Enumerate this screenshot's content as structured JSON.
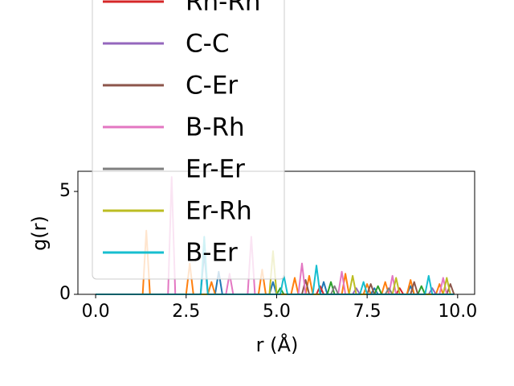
{
  "chart_data": {
    "type": "line",
    "xlabel": "r (Å)",
    "ylabel": "g(r)",
    "xlim": [
      -0.49,
      10.47
    ],
    "ylim": [
      0,
      5.98
    ],
    "xticks": [
      {
        "value": 0,
        "label": "0.0"
      },
      {
        "value": 2.5,
        "label": "2.5"
      },
      {
        "value": 5,
        "label": "5.0"
      },
      {
        "value": 7.5,
        "label": "7.5"
      },
      {
        "value": 10,
        "label": "10.0"
      }
    ],
    "yticks": [
      0,
      5
    ],
    "legend": "upper left",
    "series": [
      {
        "color": "#1f77b4",
        "x": [
          0,
          2.9,
          3.0,
          3.1,
          3.3,
          3.4,
          3.5,
          4.8,
          4.9,
          5.0,
          6.2,
          6.3,
          6.4,
          7.6,
          7.7,
          7.8,
          8.6,
          8.7,
          8.8,
          9.9
        ],
        "values": [
          0,
          0,
          2.0,
          0,
          0,
          1.1,
          0,
          0,
          0.6,
          0,
          0,
          0.6,
          0,
          0,
          0.3,
          0,
          0,
          0.4,
          0,
          0
        ]
      },
      {
        "color": "#ff7f0e",
        "x": [
          0,
          1.3,
          1.4,
          1.5,
          2.5,
          2.6,
          2.7,
          3.1,
          3.2,
          3.3,
          4.5,
          4.6,
          4.7,
          5.4,
          5.5,
          5.6,
          5.8,
          5.9,
          6.0,
          6.8,
          6.9,
          7.0,
          7.4,
          7.5,
          7.6,
          7.9,
          8.0,
          8.1,
          8.6,
          8.7,
          8.8,
          9.4,
          9.5,
          9.6,
          9.9
        ],
        "values": [
          0,
          0,
          3.1,
          0,
          0,
          1.5,
          0,
          0,
          0.6,
          0,
          0,
          1.2,
          0,
          0,
          0.8,
          0,
          0,
          0.9,
          0,
          0,
          1.0,
          0,
          0,
          0.5,
          0,
          0,
          0.6,
          0,
          0,
          0.7,
          0,
          0,
          0.5,
          0,
          0
        ]
      },
      {
        "color": "#2ca02c",
        "x": [
          0,
          5.0,
          5.1,
          5.2,
          6.4,
          6.5,
          6.6,
          7.7,
          7.8,
          7.9,
          8.9,
          9.0,
          9.1,
          9.9
        ],
        "values": [
          0,
          0,
          0.3,
          0,
          0,
          0.6,
          0,
          0,
          0.4,
          0,
          0,
          0.4,
          0,
          0
        ]
      },
      {
        "name": "Rh-Rh",
        "color": "#d62728",
        "x": [
          0,
          6.1,
          6.2,
          6.3,
          8.3,
          8.4,
          8.5,
          9.9
        ],
        "values": [
          0,
          0,
          0.4,
          0,
          0,
          0.3,
          0,
          0
        ]
      },
      {
        "name": "C-C",
        "color": "#9467bd",
        "x": [
          0,
          7.1,
          7.2,
          7.3,
          9.2,
          9.3,
          9.4,
          9.9
        ],
        "values": [
          0,
          0,
          0.3,
          0,
          0,
          0.3,
          0,
          0
        ]
      },
      {
        "name": "C-Er",
        "color": "#8c564b",
        "x": [
          0,
          5.7,
          5.8,
          5.9,
          7.5,
          7.6,
          7.7,
          8.7,
          8.8,
          8.9,
          9.7,
          9.8,
          9.9
        ],
        "values": [
          0,
          0,
          0.7,
          0,
          0,
          0.5,
          0,
          0,
          0.6,
          0,
          0,
          0.5,
          0
        ]
      },
      {
        "name": "B-Rh",
        "color": "#e377c2",
        "x": [
          0,
          2.0,
          2.1,
          2.2,
          3.6,
          3.7,
          3.8,
          4.2,
          4.3,
          4.4,
          5.6,
          5.7,
          5.8,
          6.7,
          6.8,
          6.9,
          8.1,
          8.2,
          8.3,
          9.5,
          9.6,
          9.7,
          9.9
        ],
        "values": [
          0,
          0,
          5.7,
          0,
          0,
          1.0,
          0,
          0,
          2.8,
          0,
          0,
          1.5,
          0,
          0,
          1.1,
          0,
          0,
          0.9,
          0,
          0,
          0.8,
          0,
          0
        ]
      },
      {
        "name": "Er-Er",
        "color": "#7f7f7f",
        "x": [
          0,
          6.5,
          6.6,
          6.7,
          8.0,
          8.1,
          8.2,
          9.9
        ],
        "values": [
          0,
          0,
          0.4,
          0,
          0,
          0.3,
          0,
          0
        ]
      },
      {
        "name": "Er-Rh",
        "color": "#bcbd22",
        "x": [
          0,
          4.8,
          4.9,
          5.0,
          7.0,
          7.1,
          7.2,
          8.2,
          8.3,
          8.4,
          9.6,
          9.7,
          9.8,
          9.9
        ],
        "values": [
          0,
          0,
          2.1,
          0,
          0,
          0.9,
          0,
          0,
          0.8,
          0,
          0,
          0.8,
          0,
          0
        ]
      },
      {
        "name": "B-Er",
        "color": "#17becf",
        "x": [
          0,
          2.9,
          3.0,
          3.1,
          5.1,
          5.2,
          5.3,
          6.0,
          6.1,
          6.2,
          7.3,
          7.4,
          7.5,
          9.1,
          9.2,
          9.3,
          9.9
        ],
        "values": [
          0,
          0,
          2.8,
          0,
          0,
          0.9,
          0,
          0,
          1.4,
          0,
          0,
          0.6,
          0,
          0,
          0.9,
          0,
          0
        ]
      }
    ]
  }
}
